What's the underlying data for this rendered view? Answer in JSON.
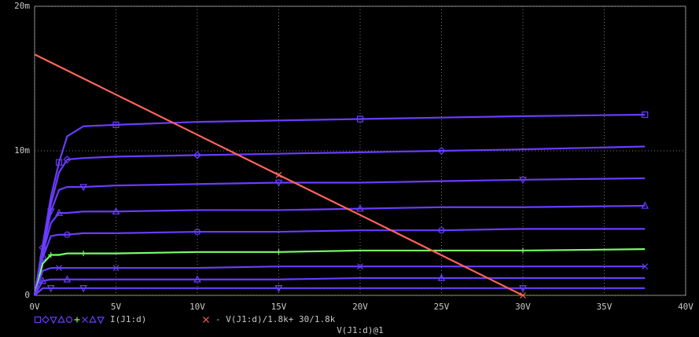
{
  "chart_data": {
    "type": "line",
    "x_label": "V(J1:d)@1",
    "legend": [
      "I(J1:d)",
      "- V(J1:d)/1.8k+ 30/1.8k"
    ],
    "xlim": [
      0,
      40
    ],
    "xticks": [
      {
        "value": 0,
        "label": "0V"
      },
      {
        "value": 5,
        "label": "5V"
      },
      {
        "value": 10,
        "label": "10V"
      },
      {
        "value": 15,
        "label": "15V"
      },
      {
        "value": 20,
        "label": "20V"
      },
      {
        "value": 25,
        "label": "25V"
      },
      {
        "value": 30,
        "label": "30V"
      },
      {
        "value": 35,
        "label": "35V"
      },
      {
        "value": 40,
        "label": "40V"
      }
    ],
    "ylim": [
      0,
      0.02
    ],
    "yticks": [
      0,
      {
        "value": 0.01,
        "label": "10m"
      },
      {
        "value": 0.02,
        "label": "20m"
      }
    ],
    "grid": true,
    "series": [
      {
        "color": "#6a3cff",
        "marker": "square",
        "x": [
          0,
          0.5,
          1,
          1.5,
          2,
          3,
          5,
          10,
          15,
          20,
          25,
          30,
          37.5
        ],
        "values": [
          0,
          0.0035,
          0.0068,
          0.0092,
          0.011,
          0.0117,
          0.0118,
          0.012,
          0.0121,
          0.0122,
          0.0123,
          0.0124,
          0.0125
        ]
      },
      {
        "color": "#6a3cff",
        "marker": "diamond",
        "x": [
          0,
          0.5,
          1,
          1.5,
          2,
          3,
          5,
          10,
          15,
          20,
          25,
          30,
          37.5
        ],
        "values": [
          0,
          0.0033,
          0.0063,
          0.0085,
          0.0094,
          0.0095,
          0.0096,
          0.0097,
          0.0098,
          0.0099,
          0.01,
          0.0101,
          0.0103
        ]
      },
      {
        "color": "#6a3cff",
        "marker": "tri-down",
        "x": [
          0,
          0.5,
          1,
          1.5,
          2,
          3,
          5,
          10,
          15,
          20,
          25,
          30,
          37.5
        ],
        "values": [
          0,
          0.0031,
          0.0058,
          0.0073,
          0.0075,
          0.0075,
          0.0076,
          0.0077,
          0.0078,
          0.0078,
          0.0079,
          0.008,
          0.0081
        ]
      },
      {
        "color": "#6a3cff",
        "marker": "tri-up",
        "x": [
          0,
          0.5,
          1,
          1.5,
          2,
          3,
          5,
          10,
          15,
          20,
          25,
          30,
          37.5
        ],
        "values": [
          0,
          0.0029,
          0.005,
          0.0057,
          0.0057,
          0.0058,
          0.0058,
          0.0059,
          0.0059,
          0.006,
          0.0061,
          0.0061,
          0.0062
        ]
      },
      {
        "color": "#6a3cff",
        "marker": "circle",
        "x": [
          0,
          0.5,
          1,
          1.5,
          2,
          3,
          5,
          10,
          15,
          20,
          25,
          30,
          37.5
        ],
        "values": [
          0,
          0.0026,
          0.0041,
          0.0042,
          0.0042,
          0.0043,
          0.0043,
          0.0044,
          0.0044,
          0.0045,
          0.0045,
          0.0046,
          0.0046
        ]
      },
      {
        "color": "#77ff66",
        "marker": "plus",
        "x": [
          0,
          0.5,
          1,
          1.5,
          2,
          3,
          5,
          10,
          15,
          20,
          25,
          30,
          37.5
        ],
        "values": [
          0,
          0.0022,
          0.0028,
          0.0028,
          0.0029,
          0.0029,
          0.0029,
          0.003,
          0.003,
          0.0031,
          0.0031,
          0.0031,
          0.0032
        ]
      },
      {
        "color": "#6a3cff",
        "marker": "cross",
        "x": [
          0,
          0.5,
          1,
          1.5,
          2,
          3,
          5,
          10,
          15,
          20,
          25,
          30,
          37.5
        ],
        "values": [
          0,
          0.0017,
          0.0019,
          0.0019,
          0.0019,
          0.0019,
          0.0019,
          0.0019,
          0.002,
          0.002,
          0.002,
          0.002,
          0.002
        ]
      },
      {
        "color": "#6a3cff",
        "marker": "tri-up",
        "x": [
          0,
          0.5,
          1,
          1.5,
          2,
          3,
          5,
          10,
          15,
          20,
          25,
          30,
          37.5
        ],
        "values": [
          0,
          0.001,
          0.0011,
          0.0011,
          0.0011,
          0.0011,
          0.0011,
          0.0011,
          0.0011,
          0.0012,
          0.0012,
          0.0012,
          0.0012
        ]
      },
      {
        "color": "#6a3cff",
        "marker": "tri-down",
        "x": [
          0,
          0.5,
          1,
          1.5,
          2,
          3,
          5,
          10,
          15,
          20,
          25,
          30,
          37.5
        ],
        "values": [
          0,
          0.0005,
          0.0005,
          0.0005,
          0.0005,
          0.0005,
          0.0005,
          0.0005,
          0.0005,
          0.0005,
          0.0005,
          0.0005,
          0.0005
        ]
      },
      {
        "color": "#ff6655",
        "marker": "cross",
        "x": [
          0,
          5,
          10,
          15,
          20,
          25,
          30
        ],
        "values": [
          0.01667,
          0.01389,
          0.01111,
          0.00833,
          0.00556,
          0.00278,
          0
        ]
      }
    ]
  }
}
